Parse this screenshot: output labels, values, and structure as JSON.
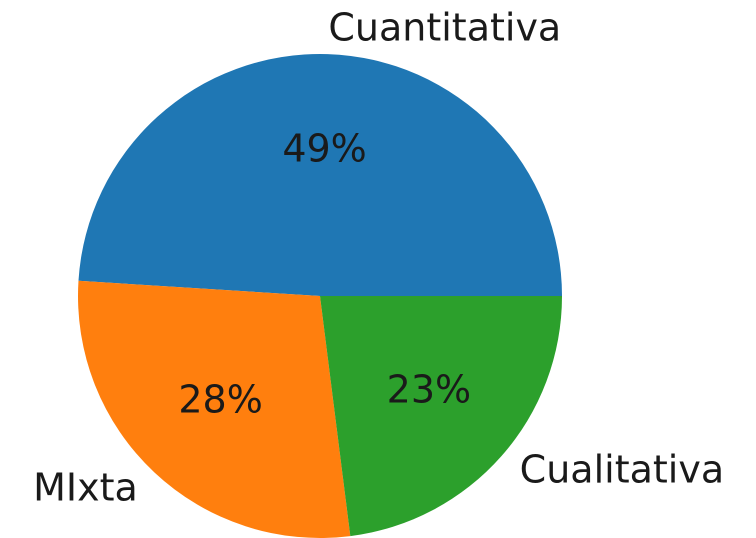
{
  "chart_data": {
    "type": "pie",
    "categories": [
      "Cuantitativa",
      "MIxta",
      "Cualitativa"
    ],
    "values": [
      49,
      28,
      23
    ],
    "value_labels": [
      "49%",
      "28%",
      "23%"
    ],
    "colors": [
      "#1f77b4",
      "#ff7f0e",
      "#2ca02c"
    ]
  }
}
